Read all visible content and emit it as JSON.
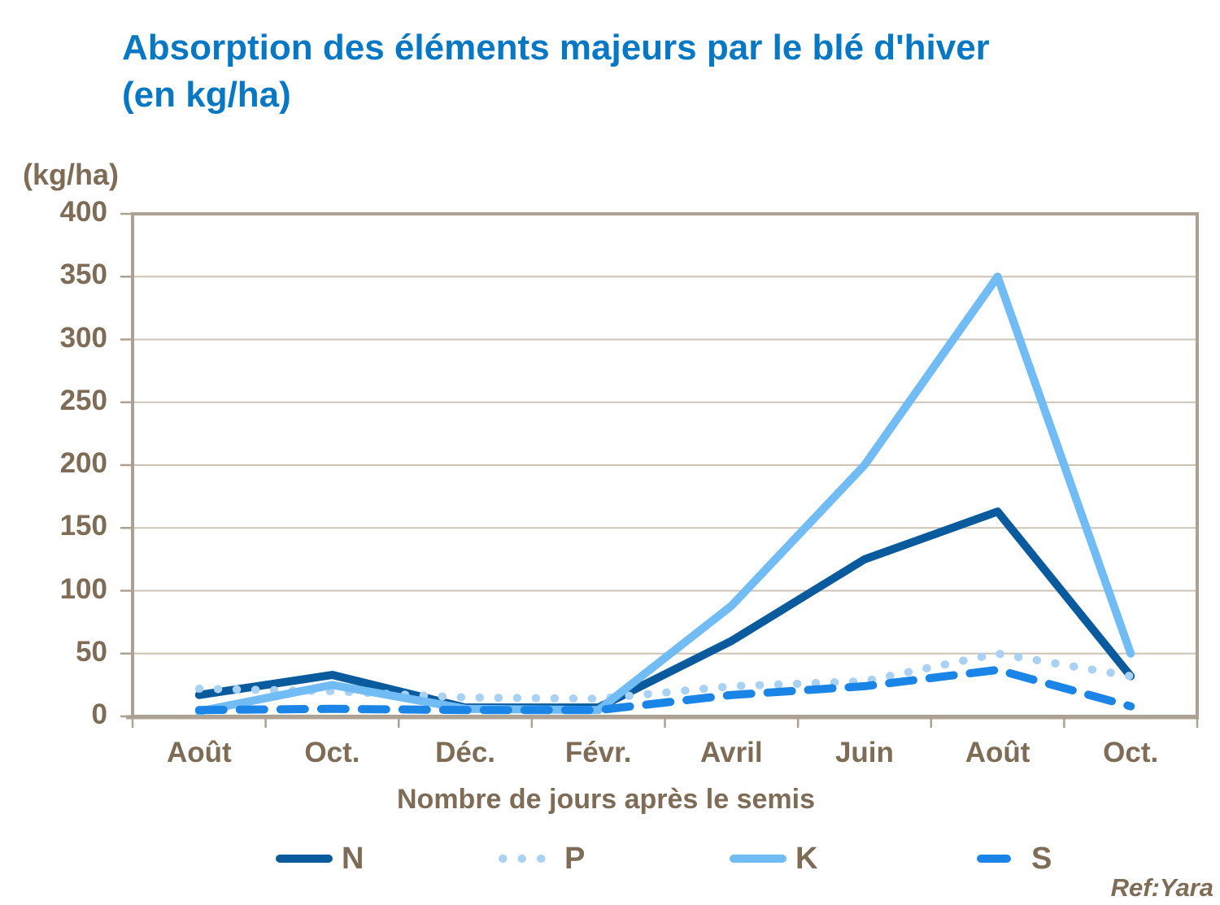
{
  "page": {
    "title_line1": "Absorption des éléments majeurs par le blé d'hiver",
    "title_line2": "(en kg/ha)",
    "source": "Ref:Yara"
  },
  "colors": {
    "title": "#0878C4",
    "text": "#7E6C56",
    "grid": "#CCC3B5",
    "axis": "#ADA193",
    "background": "#FFFFFF"
  },
  "chart_data": {
    "type": "line",
    "title": "Absorption des éléments majeurs par le blé d'hiver (en kg/ha)",
    "xlabel": "Nombre de jours après le semis",
    "ylabel": "(kg/ha)",
    "categories": [
      "Août",
      "Oct.",
      "Déc.",
      "Févr.",
      "Avril",
      "Juin",
      "Août",
      "Oct."
    ],
    "ylim": [
      0,
      400
    ],
    "yticks": [
      0,
      50,
      100,
      150,
      200,
      250,
      300,
      350,
      400
    ],
    "grid": "horizontal",
    "legend_position": "bottom",
    "series": [
      {
        "name": "N",
        "style": "solid",
        "color": "#0A5B9E",
        "values": [
          17,
          33,
          7,
          7,
          60,
          125,
          163,
          32
        ]
      },
      {
        "name": "P",
        "style": "dotted",
        "color": "#A9D1F4",
        "values": [
          22,
          20,
          15,
          14,
          24,
          28,
          50,
          32
        ]
      },
      {
        "name": "K",
        "style": "solid",
        "color": "#72BCF6",
        "values": [
          4,
          25,
          6,
          5,
          88,
          200,
          350,
          50
        ]
      },
      {
        "name": "S",
        "style": "dashed",
        "color": "#1A85E6",
        "values": [
          5,
          6,
          5,
          5,
          17,
          24,
          37,
          8
        ]
      }
    ]
  }
}
